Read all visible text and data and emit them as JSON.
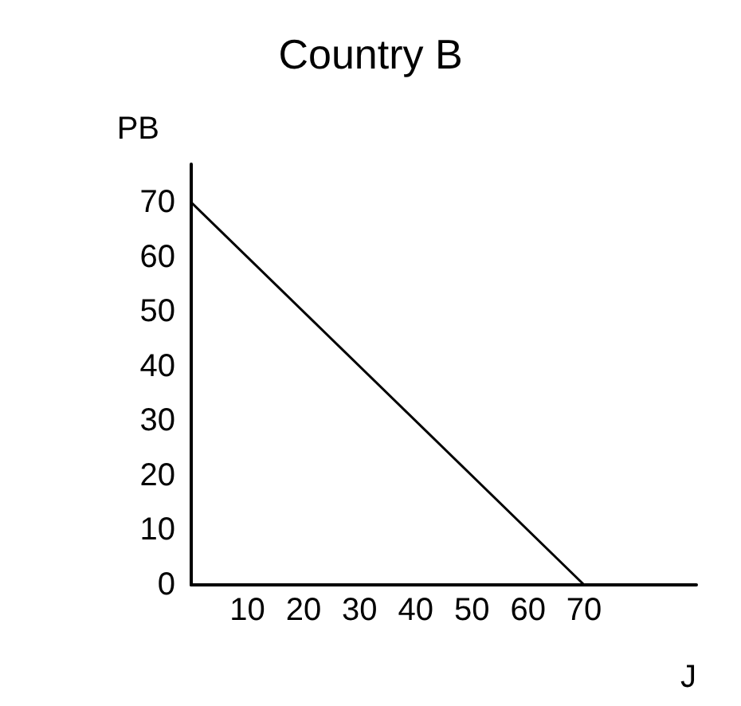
{
  "chart_data": {
    "type": "line",
    "title": "Country B",
    "xlabel": "J",
    "ylabel": "PB",
    "x": [
      0,
      70
    ],
    "series": [
      {
        "color": "#000000",
        "values": [
          70,
          0
        ]
      }
    ],
    "xlim": [
      0,
      90
    ],
    "xticks": [
      10,
      20,
      30,
      40,
      50,
      60,
      70
    ],
    "ylim": [
      0,
      77
    ],
    "yticks": [
      0,
      10,
      20,
      30,
      40,
      50,
      60,
      70
    ],
    "grid": false,
    "marker": "none",
    "line_style": "solid"
  }
}
